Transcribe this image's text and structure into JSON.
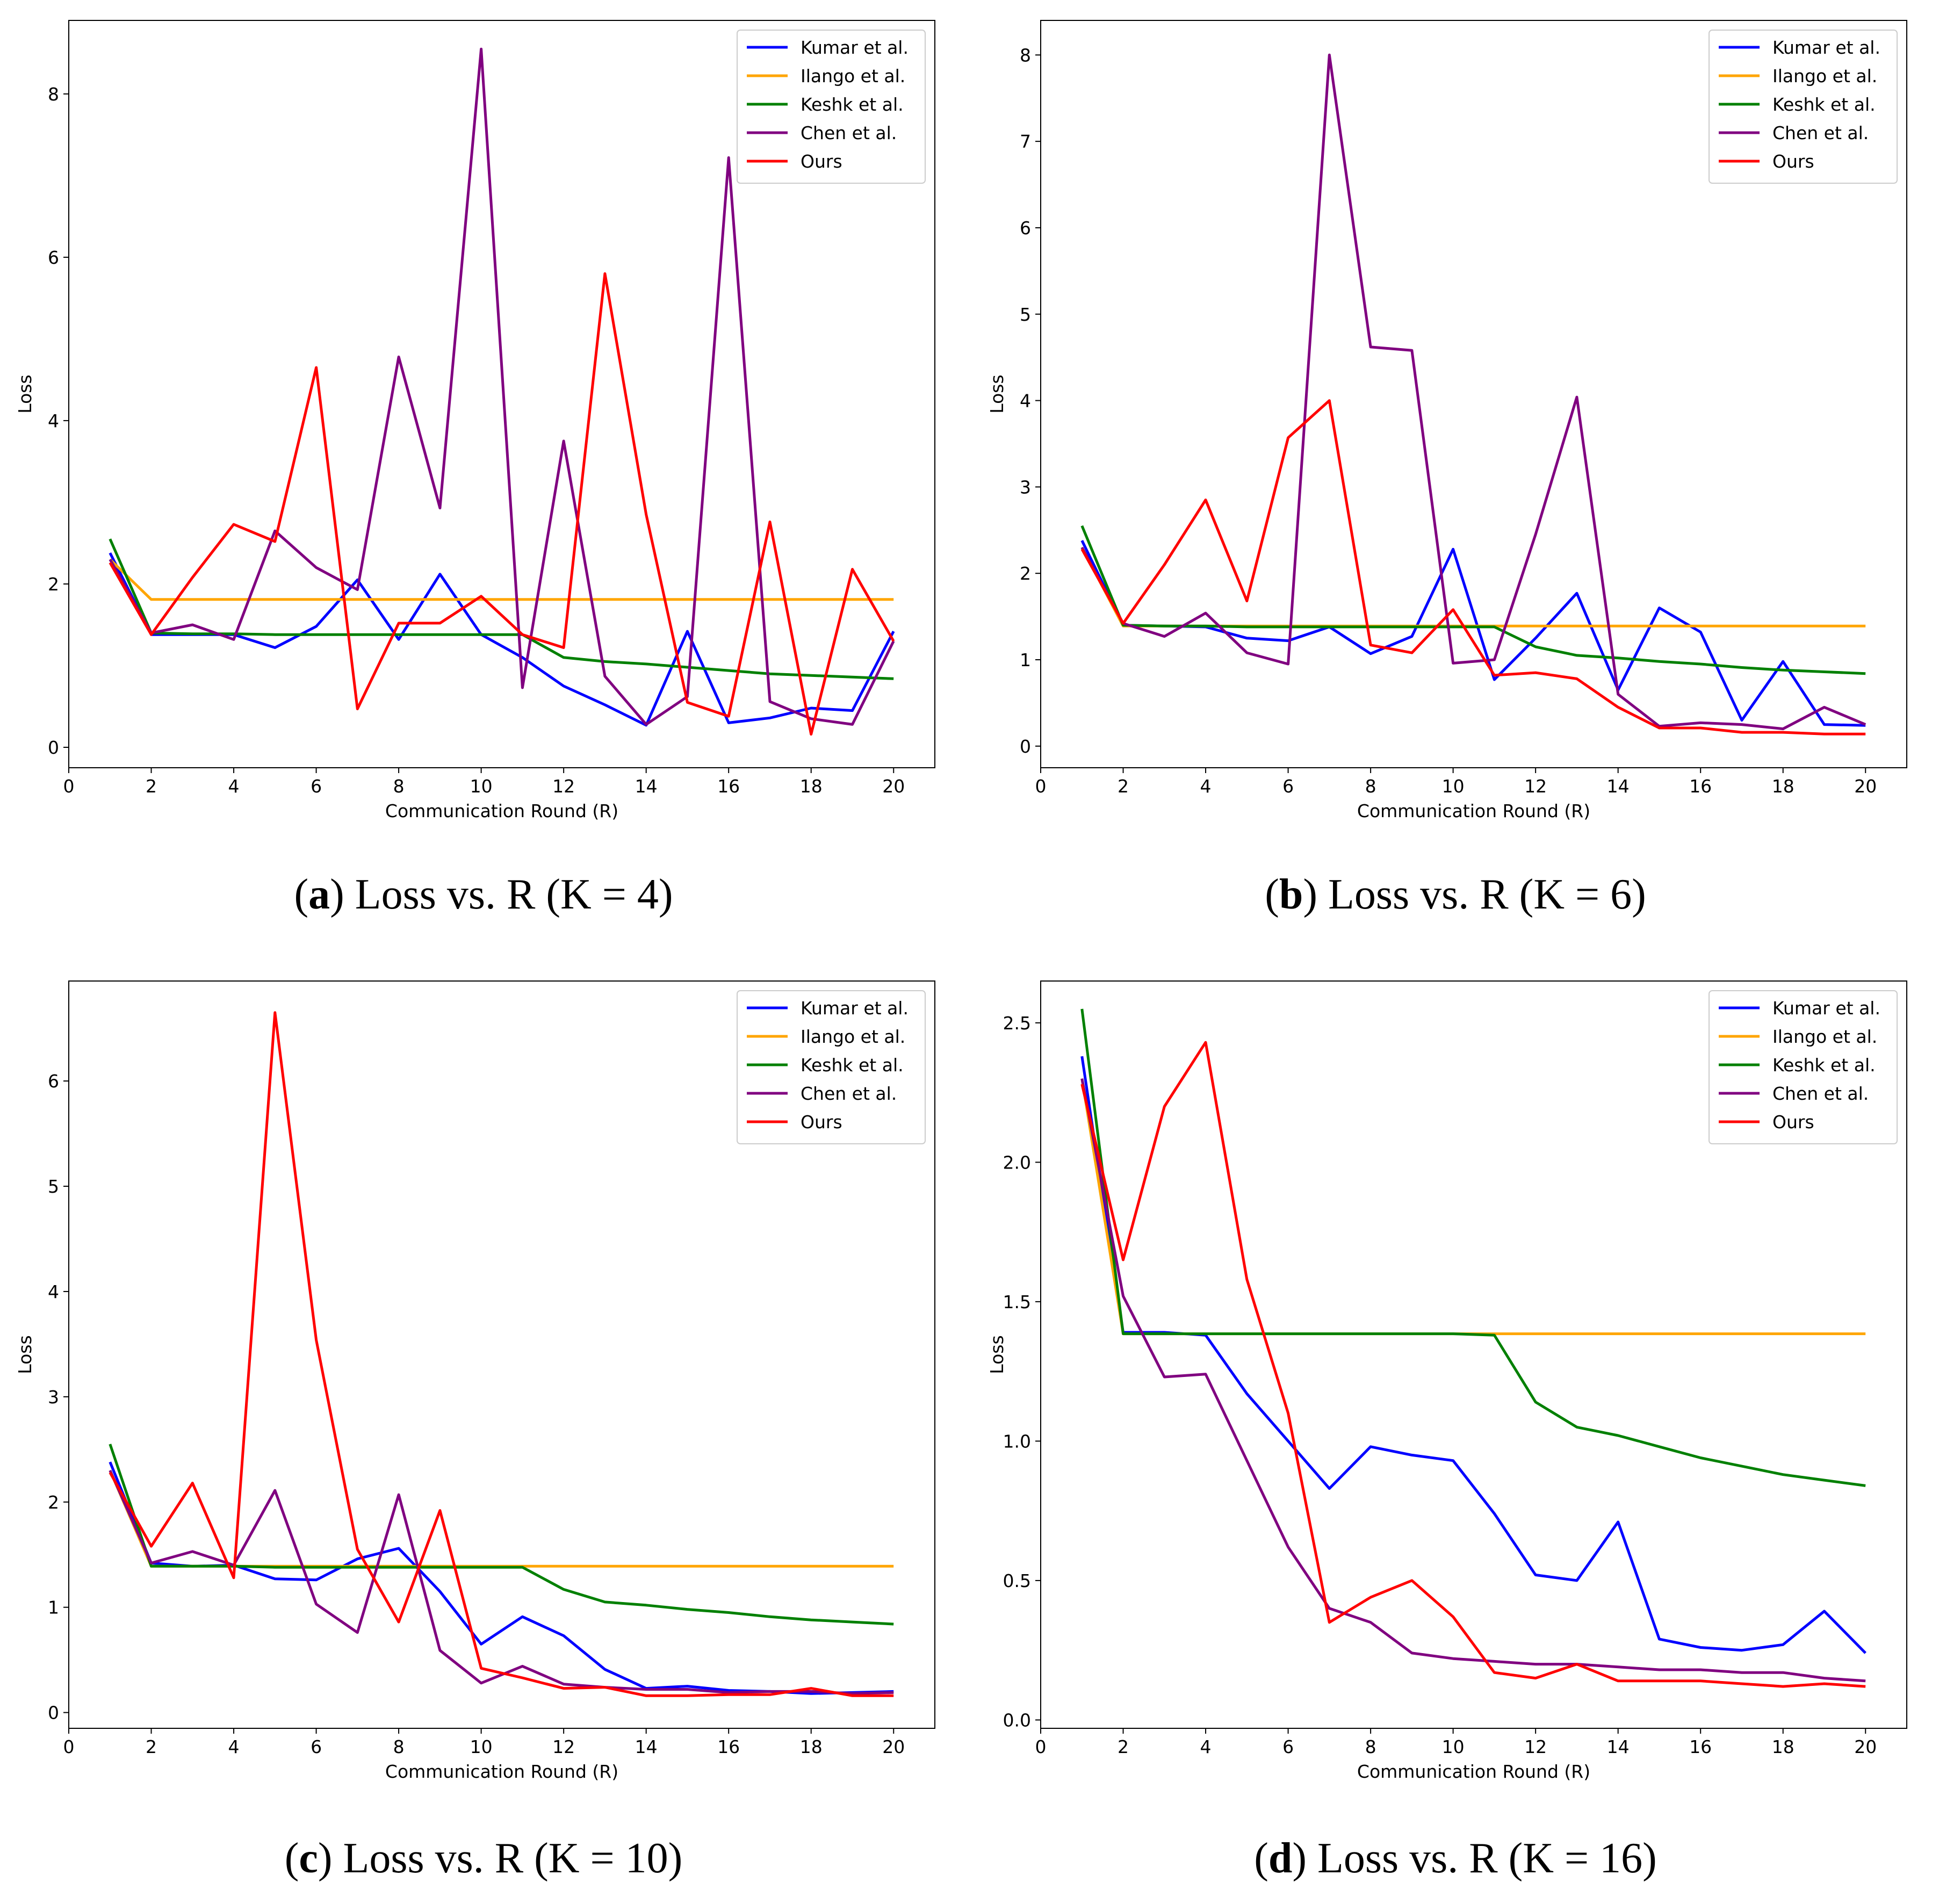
{
  "chart_data": [
    {
      "type": "line",
      "panel": "a",
      "caption": {
        "letter": "a",
        "text": "Loss vs. R (K = 4)"
      },
      "xlabel": "Communication Round (R)",
      "ylabel": "Loss",
      "xlim": [
        0,
        21
      ],
      "ylim": [
        -0.25,
        8.9
      ],
      "xticks": [
        0,
        2,
        4,
        6,
        8,
        10,
        12,
        14,
        16,
        18,
        20
      ],
      "yticks": [
        0,
        2,
        4,
        6,
        8
      ],
      "legend_position": "top-right",
      "x": [
        1,
        2,
        3,
        4,
        5,
        6,
        7,
        8,
        9,
        10,
        11,
        12,
        13,
        14,
        15,
        16,
        17,
        18,
        19,
        20
      ],
      "series": [
        {
          "name": "Kumar et al.",
          "color": "#0000ff",
          "values": [
            2.38,
            1.38,
            1.38,
            1.38,
            1.22,
            1.48,
            2.05,
            1.32,
            2.12,
            1.38,
            1.1,
            0.75,
            0.52,
            0.27,
            1.42,
            0.3,
            0.36,
            0.48,
            0.45,
            1.42
          ]
        },
        {
          "name": "Ilango et al.",
          "color": "#ffa500",
          "values": [
            2.3,
            1.81,
            1.81,
            1.81,
            1.81,
            1.81,
            1.81,
            1.81,
            1.81,
            1.81,
            1.81,
            1.81,
            1.81,
            1.81,
            1.81,
            1.81,
            1.81,
            1.81,
            1.81,
            1.81
          ]
        },
        {
          "name": "Keshk et al.",
          "color": "#008000",
          "values": [
            2.55,
            1.4,
            1.39,
            1.39,
            1.38,
            1.38,
            1.38,
            1.38,
            1.38,
            1.38,
            1.38,
            1.1,
            1.05,
            1.02,
            0.98,
            0.94,
            0.9,
            0.88,
            0.86,
            0.84
          ]
        },
        {
          "name": "Chen et al.",
          "color": "#800080",
          "values": [
            2.3,
            1.4,
            1.5,
            1.32,
            2.65,
            2.2,
            1.93,
            4.78,
            2.93,
            8.55,
            0.73,
            3.75,
            0.87,
            0.28,
            0.62,
            7.22,
            0.56,
            0.35,
            0.28,
            1.3
          ]
        },
        {
          "name": "Ours",
          "color": "#ff0000",
          "values": [
            2.26,
            1.38,
            2.08,
            2.73,
            2.52,
            4.65,
            0.47,
            1.52,
            1.52,
            1.85,
            1.38,
            1.22,
            5.8,
            2.85,
            0.55,
            0.38,
            2.76,
            0.16,
            2.18,
            1.3
          ]
        }
      ]
    },
    {
      "type": "line",
      "panel": "b",
      "caption": {
        "letter": "b",
        "text": "Loss vs. R (K = 6)"
      },
      "xlabel": "Communication Round (R)",
      "ylabel": "Loss",
      "xlim": [
        0,
        21
      ],
      "ylim": [
        -0.25,
        8.4
      ],
      "xticks": [
        0,
        2,
        4,
        6,
        8,
        10,
        12,
        14,
        16,
        18,
        20
      ],
      "yticks": [
        0,
        1,
        2,
        3,
        4,
        5,
        6,
        7,
        8
      ],
      "legend_position": "top-right",
      "x": [
        1,
        2,
        3,
        4,
        5,
        6,
        7,
        8,
        9,
        10,
        11,
        12,
        13,
        14,
        15,
        16,
        17,
        18,
        19,
        20
      ],
      "series": [
        {
          "name": "Kumar et al.",
          "color": "#0000ff",
          "values": [
            2.38,
            1.4,
            1.39,
            1.38,
            1.25,
            1.22,
            1.38,
            1.07,
            1.27,
            2.28,
            0.77,
            1.25,
            1.77,
            0.65,
            1.6,
            1.32,
            0.3,
            0.98,
            0.25,
            0.24
          ]
        },
        {
          "name": "Ilango et al.",
          "color": "#ffa500",
          "values": [
            2.3,
            1.39,
            1.39,
            1.39,
            1.39,
            1.39,
            1.39,
            1.39,
            1.39,
            1.39,
            1.39,
            1.39,
            1.39,
            1.39,
            1.39,
            1.39,
            1.39,
            1.39,
            1.39,
            1.39
          ]
        },
        {
          "name": "Keshk et al.",
          "color": "#008000",
          "values": [
            2.55,
            1.4,
            1.39,
            1.39,
            1.38,
            1.38,
            1.38,
            1.38,
            1.38,
            1.38,
            1.38,
            1.15,
            1.05,
            1.02,
            0.98,
            0.95,
            0.91,
            0.88,
            0.86,
            0.84
          ]
        },
        {
          "name": "Chen et al.",
          "color": "#800080",
          "values": [
            2.3,
            1.42,
            1.27,
            1.54,
            1.08,
            0.95,
            8.0,
            4.62,
            4.58,
            0.96,
            1.0,
            2.45,
            4.04,
            0.6,
            0.23,
            0.27,
            0.25,
            0.2,
            0.45,
            0.25
          ]
        },
        {
          "name": "Ours",
          "color": "#ff0000",
          "values": [
            2.28,
            1.42,
            2.1,
            2.85,
            1.68,
            3.57,
            4.0,
            1.17,
            1.08,
            1.58,
            0.82,
            0.85,
            0.78,
            0.45,
            0.21,
            0.21,
            0.16,
            0.16,
            0.14,
            0.14
          ]
        }
      ]
    },
    {
      "type": "line",
      "panel": "c",
      "caption": {
        "letter": "c",
        "text": "Loss vs. R (K = 10)"
      },
      "xlabel": "Communication Round (R)",
      "ylabel": "Loss",
      "xlim": [
        0,
        21
      ],
      "ylim": [
        -0.15,
        6.95
      ],
      "xticks": [
        0,
        2,
        4,
        6,
        8,
        10,
        12,
        14,
        16,
        18,
        20
      ],
      "yticks": [
        0,
        1,
        2,
        3,
        4,
        5,
        6
      ],
      "legend_position": "top-right",
      "x": [
        1,
        2,
        3,
        4,
        5,
        6,
        7,
        8,
        9,
        10,
        11,
        12,
        13,
        14,
        15,
        16,
        17,
        18,
        19,
        20
      ],
      "series": [
        {
          "name": "Kumar et al.",
          "color": "#0000ff",
          "values": [
            2.38,
            1.42,
            1.39,
            1.4,
            1.27,
            1.26,
            1.46,
            1.56,
            1.15,
            0.65,
            0.91,
            0.73,
            0.41,
            0.23,
            0.25,
            0.21,
            0.2,
            0.18,
            0.19,
            0.2
          ]
        },
        {
          "name": "Ilango et al.",
          "color": "#ffa500",
          "values": [
            2.3,
            1.39,
            1.39,
            1.39,
            1.39,
            1.39,
            1.39,
            1.39,
            1.39,
            1.39,
            1.39,
            1.39,
            1.39,
            1.39,
            1.39,
            1.39,
            1.39,
            1.39,
            1.39,
            1.39
          ]
        },
        {
          "name": "Keshk et al.",
          "color": "#008000",
          "values": [
            2.55,
            1.39,
            1.39,
            1.39,
            1.38,
            1.38,
            1.38,
            1.38,
            1.38,
            1.38,
            1.38,
            1.17,
            1.05,
            1.02,
            0.98,
            0.95,
            0.91,
            0.88,
            0.86,
            0.84
          ]
        },
        {
          "name": "Chen et al.",
          "color": "#800080",
          "values": [
            2.3,
            1.42,
            1.53,
            1.4,
            2.11,
            1.03,
            0.76,
            2.07,
            0.59,
            0.28,
            0.44,
            0.27,
            0.24,
            0.22,
            0.22,
            0.19,
            0.2,
            0.2,
            0.18,
            0.19
          ]
        },
        {
          "name": "Ours",
          "color": "#ff0000",
          "values": [
            2.28,
            1.58,
            2.18,
            1.28,
            6.65,
            3.54,
            1.55,
            0.86,
            1.92,
            0.42,
            0.33,
            0.23,
            0.24,
            0.16,
            0.16,
            0.17,
            0.17,
            0.23,
            0.16,
            0.16
          ]
        }
      ]
    },
    {
      "type": "line",
      "panel": "d",
      "caption": {
        "letter": "d",
        "text": "Loss vs. R (K = 16)"
      },
      "xlabel": "Communication Round (R)",
      "ylabel": "Loss",
      "xlim": [
        0,
        21
      ],
      "ylim": [
        -0.03,
        2.65
      ],
      "xticks": [
        0,
        2,
        4,
        6,
        8,
        10,
        12,
        14,
        16,
        18,
        20
      ],
      "yticks": [
        "0.0",
        "0.5",
        "1.0",
        "1.5",
        "2.0",
        "2.5"
      ],
      "legend_position": "top-right",
      "x": [
        1,
        2,
        3,
        4,
        5,
        6,
        7,
        8,
        9,
        10,
        11,
        12,
        13,
        14,
        15,
        16,
        17,
        18,
        19,
        20
      ],
      "series": [
        {
          "name": "Kumar et al.",
          "color": "#0000ff",
          "values": [
            2.38,
            1.39,
            1.39,
            1.38,
            1.17,
            1.0,
            0.83,
            0.98,
            0.95,
            0.93,
            0.74,
            0.52,
            0.5,
            0.71,
            0.29,
            0.26,
            0.25,
            0.27,
            0.39,
            0.24
          ]
        },
        {
          "name": "Ilango et al.",
          "color": "#ffa500",
          "values": [
            2.3,
            1.385,
            1.385,
            1.385,
            1.385,
            1.385,
            1.385,
            1.385,
            1.385,
            1.385,
            1.385,
            1.385,
            1.385,
            1.385,
            1.385,
            1.385,
            1.385,
            1.385,
            1.385,
            1.385
          ]
        },
        {
          "name": "Keshk et al.",
          "color": "#008000",
          "values": [
            2.55,
            1.385,
            1.385,
            1.385,
            1.385,
            1.385,
            1.385,
            1.385,
            1.385,
            1.385,
            1.38,
            1.14,
            1.05,
            1.02,
            0.98,
            0.94,
            0.91,
            0.88,
            0.86,
            0.84
          ]
        },
        {
          "name": "Chen et al.",
          "color": "#800080",
          "values": [
            2.3,
            1.52,
            1.23,
            1.24,
            0.93,
            0.62,
            0.4,
            0.35,
            0.24,
            0.22,
            0.21,
            0.2,
            0.2,
            0.19,
            0.18,
            0.18,
            0.17,
            0.17,
            0.15,
            0.14
          ]
        },
        {
          "name": "Ours",
          "color": "#ff0000",
          "values": [
            2.28,
            1.65,
            2.2,
            2.43,
            1.58,
            1.1,
            0.35,
            0.44,
            0.5,
            0.37,
            0.17,
            0.15,
            0.2,
            0.14,
            0.14,
            0.14,
            0.13,
            0.12,
            0.13,
            0.12
          ]
        }
      ]
    }
  ]
}
